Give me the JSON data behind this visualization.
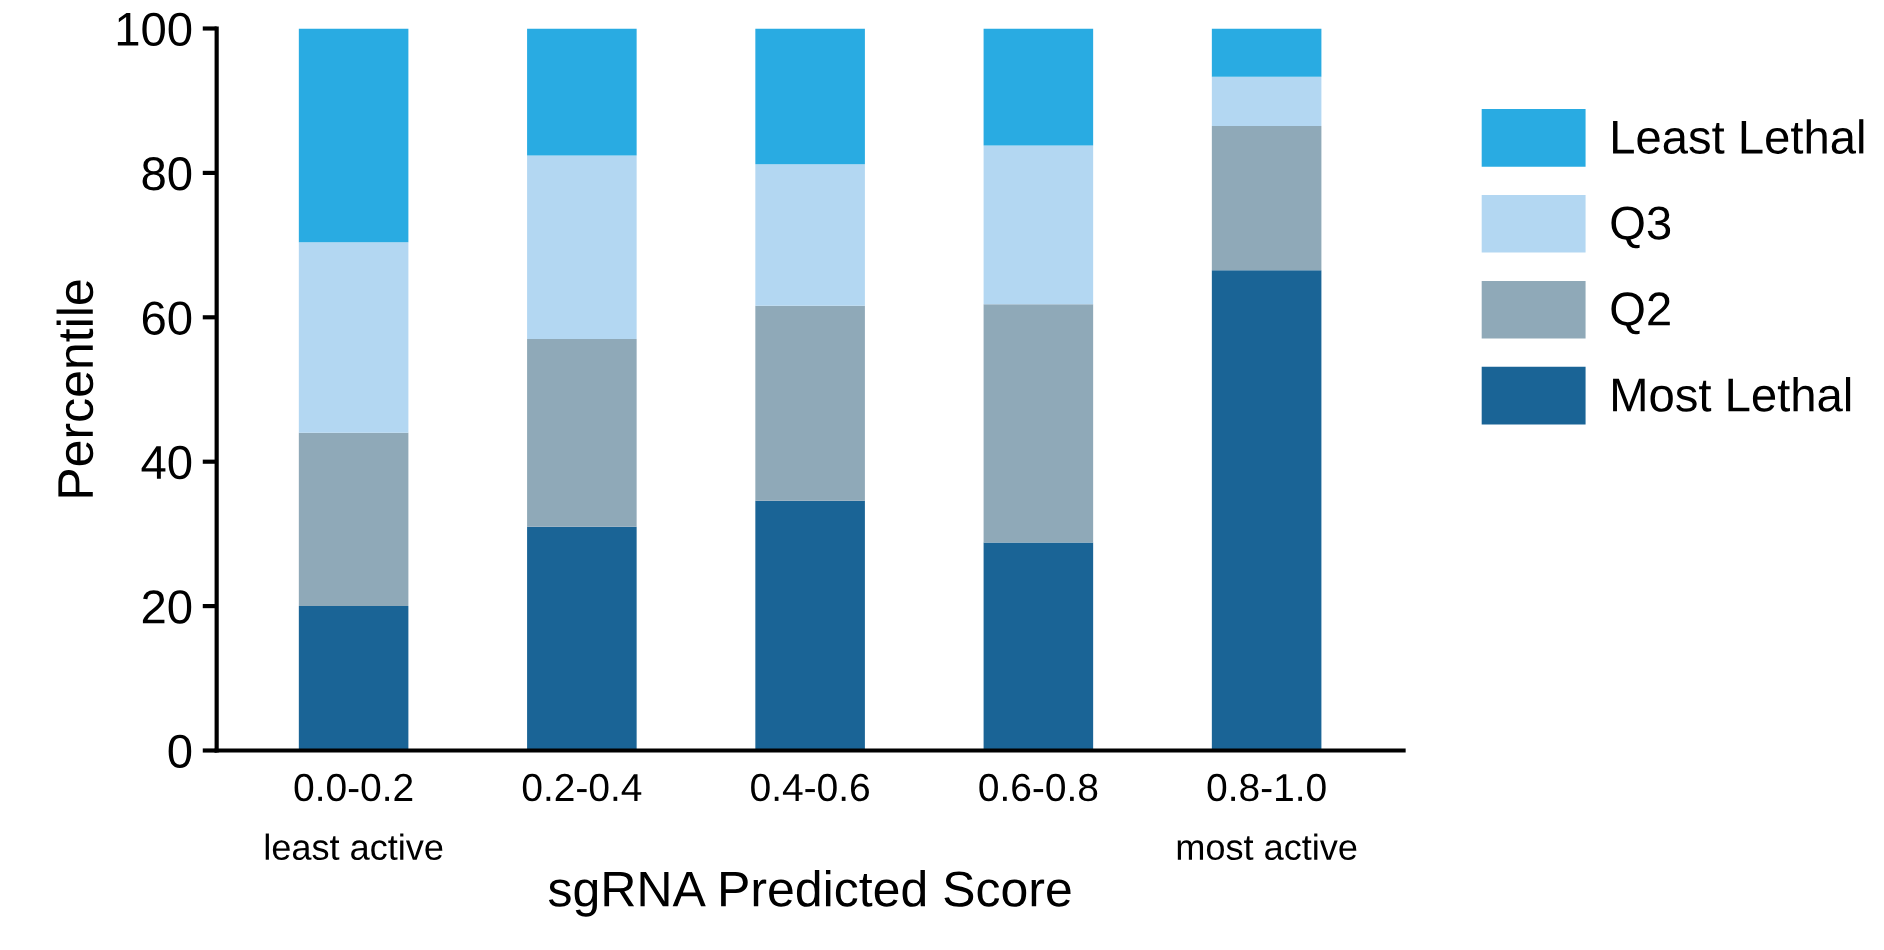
{
  "chart_data": {
    "type": "bar",
    "stacked": true,
    "xlabel": "sgRNA Predicted Score",
    "ylabel": "Percentile",
    "categories": [
      "0.0-0.2\nleast active",
      "0.2-0.4",
      "0.4-0.6",
      "0.6-0.8",
      "0.8-1.0\nmost active"
    ],
    "series": [
      {
        "name": "Most Lethal",
        "color": "#1a6496",
        "values": [
          20,
          31,
          34.6,
          28.8,
          66.5
        ]
      },
      {
        "name": "Q2",
        "color": "#8fa9b8",
        "values": [
          24,
          26,
          27,
          33,
          20
        ]
      },
      {
        "name": "Q3",
        "color": "#b3d7f2",
        "values": [
          26.4,
          25.4,
          19.6,
          22,
          6.8
        ]
      },
      {
        "name": "Least Lethal",
        "color": "#29abe2",
        "values": [
          29.6,
          17.6,
          18.8,
          16.2,
          6.7
        ]
      }
    ],
    "ylim": [
      0,
      100
    ],
    "yticks": [
      0,
      20,
      40,
      60,
      80,
      100
    ],
    "grid": false,
    "legend": "right"
  }
}
